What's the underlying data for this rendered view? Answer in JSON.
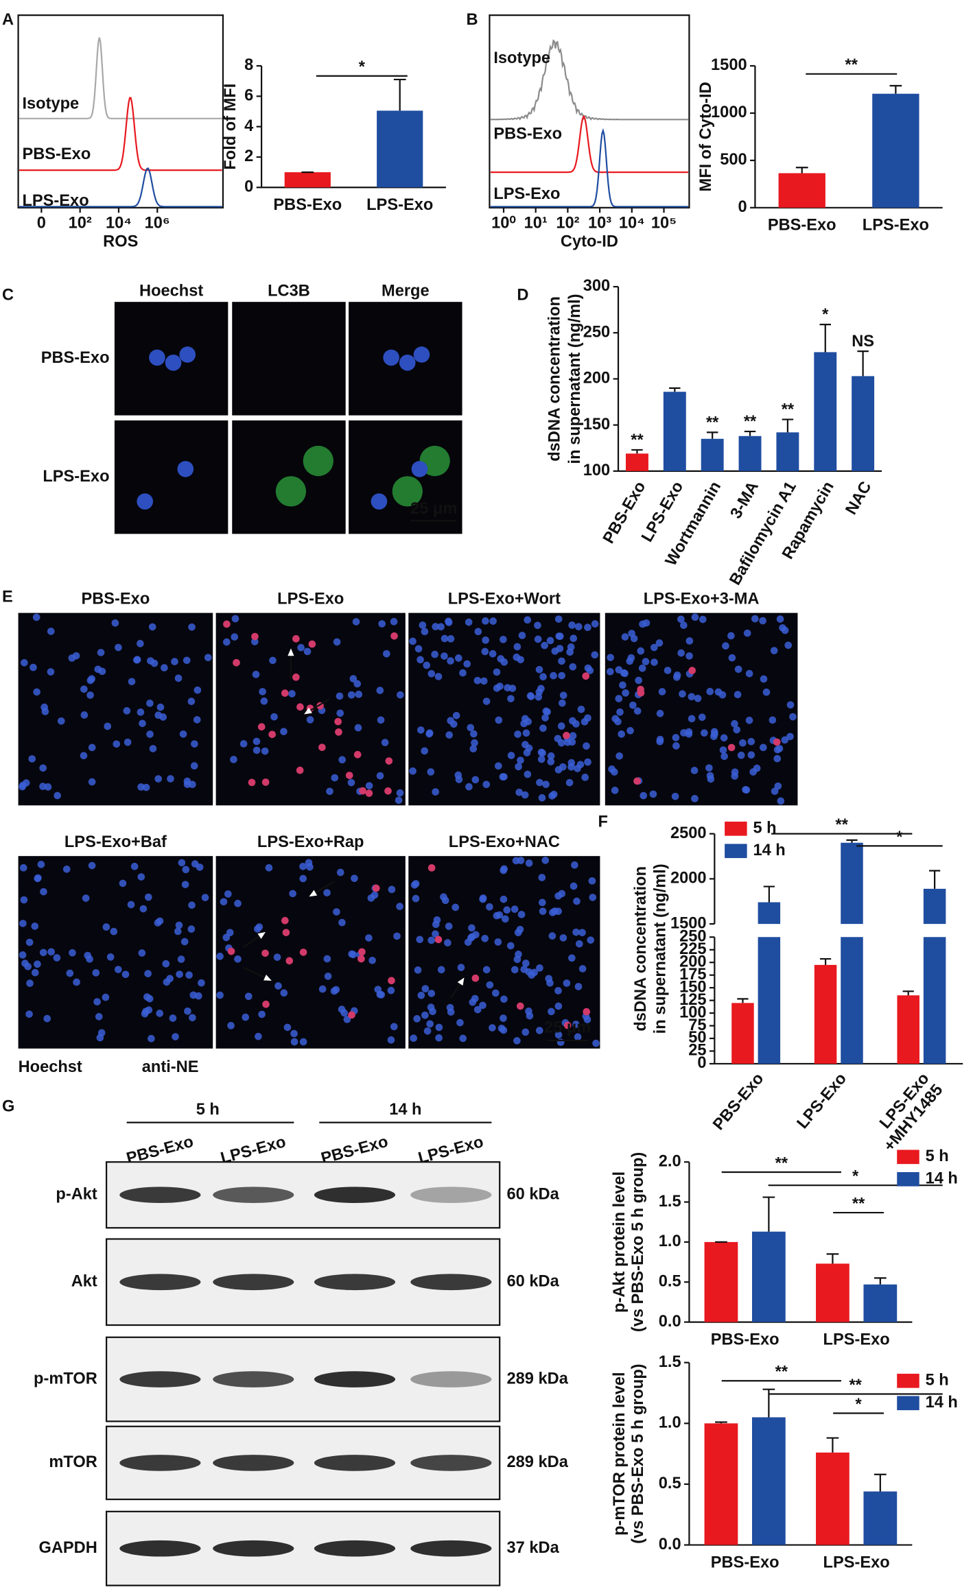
{
  "panel_labels": [
    "A",
    "B",
    "C",
    "D",
    "E",
    "F",
    "G"
  ],
  "panel_c": {
    "columns": [
      "Hoechst",
      "LC3B",
      "Merge"
    ],
    "rows": [
      "PBS-Exo",
      "LPS-Exo"
    ],
    "scale_bar": "25 μm"
  },
  "panel_e": {
    "titles": [
      "PBS-Exo",
      "LPS-Exo",
      "LPS-Exo+Wort",
      "LPS-Exo+3-MA",
      "LPS-Exo+Baf",
      "LPS-Exo+Rap",
      "LPS-Exo+NAC"
    ],
    "legend": [
      "Hoechst",
      "anti-NE"
    ],
    "scale_bar": "25 μm"
  },
  "panel_g_blot": {
    "times": [
      "5 h",
      "14 h"
    ],
    "lanes": [
      "PBS-Exo",
      "LPS-Exo",
      "PBS-Exo",
      "LPS-Exo"
    ],
    "proteins": [
      "p-Akt",
      "Akt",
      "p-mTOR",
      "mTOR",
      "GAPDH"
    ],
    "sizes": [
      "60 kDa",
      "60 kDa",
      "289 kDa",
      "289 kDa",
      "37 kDa"
    ]
  },
  "chart_data": [
    {
      "type": "flow",
      "x_label": "ROS",
      "xlim": [
        -1.2,
        9.4
      ],
      "xticks": [
        0,
        {
          "value": 2,
          "label": "10²"
        },
        {
          "value": 4,
          "label": "10⁴"
        },
        {
          "value": 6,
          "label": "10⁶"
        }
      ],
      "series": [
        {
          "name": "Isotype",
          "color": "#a8a8a8",
          "peak": 3.0
        },
        {
          "name": "PBS-Exo",
          "color": "#e8191f",
          "peak": 4.6
        },
        {
          "name": "LPS-Exo",
          "color": "#1f4da0",
          "peak": 5.5
        }
      ]
    },
    {
      "type": "bar",
      "y_label": [
        "Fold of MFI"
      ],
      "categories": [
        "PBS-Exo",
        "LPS-Exo"
      ],
      "ylim": [
        0,
        8
      ],
      "yticks": [
        0,
        2,
        4,
        6,
        8
      ],
      "series": [
        {
          "colors": [
            "#e8191f",
            "#1f4da0"
          ],
          "values": [
            1,
            5.05
          ],
          "errors": [
            0,
            2.05
          ]
        }
      ],
      "significance": [
        "*"
      ]
    },
    {
      "type": "flow",
      "x_label": "Cyto-ID",
      "xlim": [
        -0.44,
        5.79
      ],
      "xticks": [
        {
          "value": 0,
          "label": "10⁰"
        },
        {
          "value": 1,
          "label": "10¹"
        },
        {
          "value": 2,
          "label": "10²"
        },
        {
          "value": 3,
          "label": "10³"
        },
        {
          "value": 4,
          "label": "10⁴"
        },
        {
          "value": 5,
          "label": "10⁵"
        }
      ],
      "series": [
        {
          "name": "Isotype",
          "color": "#8c8c8c",
          "peak": 1.6
        },
        {
          "name": "PBS-Exo",
          "color": "#e8191f",
          "peak": 2.5
        },
        {
          "name": "LPS-Exo",
          "color": "#1f4da0",
          "peak": 3.1
        }
      ]
    },
    {
      "type": "bar",
      "y_label": [
        "MFI of Cyto-ID"
      ],
      "categories": [
        "PBS-Exo",
        "LPS-Exo"
      ],
      "ylim": [
        0,
        1500
      ],
      "yticks": [
        0,
        500,
        1000,
        1500
      ],
      "series": [
        {
          "colors": [
            "#e8191f",
            "#1f4da0"
          ],
          "values": [
            365,
            1205
          ],
          "errors": [
            60,
            85
          ]
        }
      ],
      "significance": [
        "**"
      ]
    },
    {
      "type": "bar",
      "y_label": [
        "dsDNA concentration",
        "in supernatant (ng/ml)"
      ],
      "categories": [
        "PBS-Exo",
        "LPS-Exo",
        "Wortmannin",
        "3-MA",
        "Bafilomycin A1",
        "Rapamycin",
        "NAC"
      ],
      "ylim": [
        100,
        300
      ],
      "yticks": [
        100,
        150,
        200,
        250,
        300
      ],
      "series": [
        {
          "colors": [
            "#e8191f",
            "#1f4da0",
            "#1f4da0",
            "#1f4da0",
            "#1f4da0",
            "#1f4da0",
            "#1f4da0"
          ],
          "values": [
            119,
            186,
            135,
            138,
            142,
            229,
            203
          ],
          "errors": [
            4,
            4,
            7,
            5,
            14,
            30,
            27
          ]
        }
      ],
      "annotations": [
        "**",
        null,
        "**",
        "**",
        "**",
        "*",
        "NS"
      ]
    },
    {
      "type": "broken-bar",
      "y_label": [
        "dsDNA concentration",
        "in supernatant (ng/ml)"
      ],
      "categories": [
        "PBS-Exo",
        "LPS-Exo",
        "LPS-Exo\n+MHY1485"
      ],
      "ylim": [
        0,
        250
      ],
      "yticks": [
        0,
        25,
        50,
        75,
        100,
        125,
        150,
        175,
        200,
        225,
        250
      ],
      "ylim_upper": [
        1500,
        2500
      ],
      "yticks_upper": [
        1500,
        2000,
        2500
      ],
      "series": [
        {
          "name": "5 h",
          "color": "#e8191f",
          "values": [
            120,
            195,
            135
          ],
          "errors": [
            8,
            12,
            8
          ]
        },
        {
          "name": "14 h",
          "color": "#1f4da0",
          "values": [
            1740,
            2400,
            1890
          ],
          "errors": [
            175,
            30,
            200
          ]
        }
      ],
      "significance": [
        "**",
        "*"
      ]
    },
    {
      "type": "bar",
      "y_label": [
        "p-Akt protein level",
        "(vs PBS-Exo 5 h group)"
      ],
      "categories": [
        "PBS-Exo",
        "LPS-Exo"
      ],
      "ylim": [
        0,
        2
      ],
      "yticks": [
        {
          "value": 0,
          "label": "0.0"
        },
        {
          "value": 0.5,
          "label": "0.5"
        },
        {
          "value": 1,
          "label": "1.0"
        },
        {
          "value": 1.5,
          "label": "1.5"
        },
        {
          "value": 2,
          "label": "2.0"
        }
      ],
      "series": [
        {
          "name": "5 h",
          "color": "#e8191f",
          "values": [
            1.0,
            0.73
          ],
          "errors": [
            0,
            0.12
          ]
        },
        {
          "name": "14 h",
          "color": "#1f4da0",
          "values": [
            1.13,
            0.47
          ],
          "errors": [
            0.43,
            0.08
          ]
        }
      ],
      "significance": [
        "**",
        "*",
        "**"
      ]
    },
    {
      "type": "bar",
      "y_label": [
        "p-mTOR protein level",
        "(vs PBS-Exo 5 h group)"
      ],
      "categories": [
        "PBS-Exo",
        "LPS-Exo"
      ],
      "ylim": [
        0,
        1.5
      ],
      "yticks": [
        {
          "value": 0,
          "label": "0.0"
        },
        {
          "value": 0.5,
          "label": "0.5"
        },
        {
          "value": 1,
          "label": "1.0"
        },
        {
          "value": 1.5,
          "label": "1.5"
        }
      ],
      "series": [
        {
          "name": "5 h",
          "color": "#e8191f",
          "values": [
            1.0,
            0.76
          ],
          "errors": [
            0.01,
            0.12
          ]
        },
        {
          "name": "14 h",
          "color": "#1f4da0",
          "values": [
            1.05,
            0.44
          ],
          "errors": [
            0.23,
            0.14
          ]
        }
      ],
      "significance": [
        "**",
        "**",
        "*"
      ]
    }
  ]
}
